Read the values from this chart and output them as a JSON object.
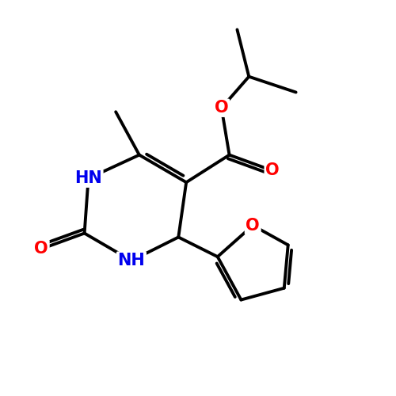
{
  "bg_color": "#ffffff",
  "bond_color": "#000000",
  "bond_width": 2.8,
  "atom_colors": {
    "O": "#ff0000",
    "N": "#0000ee",
    "C": "#000000"
  },
  "font_size_atoms": 15
}
